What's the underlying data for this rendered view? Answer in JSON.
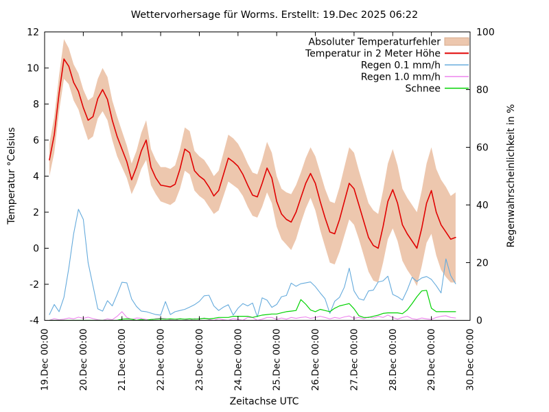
{
  "chart": {
    "title": "Wettervorhersage für Worms. Erstellt: 19.Dec 2025 06:22",
    "xlabel": "Zeitachse UTC",
    "ylabel_left": "Temperatur °Celsius",
    "ylabel_right": "Regenwahrscheinlichkeit in %"
  },
  "chart_data": {
    "type": "line",
    "title": "Wettervorhersage für Worms. Erstellt: 19.Dec 2025 06:22",
    "xlabel": "Zeitachse UTC",
    "ylabel_left": "Temperatur °Celsius",
    "ylabel_right": "Regenwahrscheinlichkeit in %",
    "x_unit": "days since 19.Dec 00:00 UTC",
    "x_range_days": [
      0,
      11
    ],
    "x_tick_labels": [
      "19.Dec 00:00",
      "20.Dec 00:00",
      "21.Dec 00:00",
      "22.Dec 00:00",
      "23.Dec 00:00",
      "24.Dec 00:00",
      "25.Dec 00:00",
      "26.Dec 00:00",
      "27.Dec 00:00",
      "28.Dec 00:00",
      "29.Dec 00:00",
      "30.Dec 00:00"
    ],
    "y_left": {
      "min": -4,
      "max": 12,
      "ticks": [
        -4,
        -2,
        0,
        2,
        4,
        6,
        8,
        10,
        12
      ]
    },
    "y_right": {
      "min": 0,
      "max": 100,
      "ticks": [
        0,
        20,
        40,
        60,
        80,
        100
      ]
    },
    "grid": false,
    "legend_position": "top-right-inside",
    "legend": [
      "Absoluter Temperaturfehler",
      "Temperatur in 2 Meter Höhe",
      "Regen 0.1 mm/h",
      "Regen 1.0 mm/h",
      "Schnee"
    ],
    "colors": {
      "band": "#edc7ae",
      "band_border": "#d8ab8c",
      "temperature": "#e00000",
      "rain01": "#64aadc",
      "rain10": "#ee82ee",
      "snow": "#00d200",
      "axis": "#000000"
    },
    "t_days": [
      0.125,
      0.25,
      0.375,
      0.5,
      0.625,
      0.75,
      0.875,
      1,
      1.125,
      1.25,
      1.375,
      1.5,
      1.625,
      1.75,
      1.875,
      2,
      2.125,
      2.25,
      2.375,
      2.5,
      2.625,
      2.75,
      2.875,
      3,
      3.125,
      3.25,
      3.375,
      3.5,
      3.625,
      3.75,
      3.875,
      4,
      4.125,
      4.25,
      4.375,
      4.5,
      4.625,
      4.75,
      4.875,
      5,
      5.125,
      5.25,
      5.375,
      5.5,
      5.625,
      5.75,
      5.875,
      6,
      6.125,
      6.25,
      6.375,
      6.5,
      6.625,
      6.75,
      6.875,
      7,
      7.125,
      7.25,
      7.375,
      7.5,
      7.625,
      7.75,
      7.875,
      8,
      8.125,
      8.25,
      8.375,
      8.5,
      8.625,
      8.75,
      8.875,
      9,
      9.125,
      9.25,
      9.375,
      9.5,
      9.625,
      9.75,
      9.875,
      10,
      10.125,
      10.25,
      10.375,
      10.5,
      10.625
    ],
    "series": [
      {
        "name": "Absoluter Temperaturfehler",
        "type": "band",
        "axis": "left",
        "hi": [
          5.8,
          7.3,
          9.6,
          11.6,
          11.1,
          10.2,
          9.7,
          8.8,
          8.2,
          8.4,
          9.4,
          10.0,
          9.5,
          8.2,
          7.3,
          6.5,
          5.7,
          4.7,
          5.4,
          6.4,
          7.1,
          5.5,
          4.9,
          4.5,
          4.5,
          4.4,
          4.6,
          5.5,
          6.7,
          6.5,
          5.4,
          5.1,
          4.9,
          4.5,
          4.0,
          4.3,
          5.3,
          6.3,
          6.1,
          5.8,
          5.3,
          4.7,
          4.2,
          4.1,
          4.9,
          5.9,
          5.3,
          4.0,
          3.3,
          3.1,
          3.0,
          3.5,
          4.2,
          5.0,
          5.6,
          5.1,
          4.2,
          3.3,
          2.6,
          2.5,
          3.4,
          4.5,
          5.6,
          5.3,
          4.3,
          3.4,
          2.5,
          2.1,
          1.9,
          3.2,
          4.7,
          5.5,
          4.6,
          3.3,
          2.8,
          2.4,
          2.0,
          3.2,
          4.7,
          5.6,
          4.4,
          3.8,
          3.4,
          2.9,
          3.1
        ],
        "lo": [
          4.0,
          5.3,
          7.6,
          9.4,
          9.1,
          8.2,
          7.7,
          6.8,
          6.0,
          6.2,
          7.2,
          7.6,
          7.1,
          6.0,
          5.1,
          4.5,
          3.9,
          3.0,
          3.6,
          4.4,
          4.9,
          3.5,
          3.0,
          2.6,
          2.5,
          2.4,
          2.6,
          3.3,
          4.3,
          4.1,
          3.2,
          2.9,
          2.7,
          2.3,
          1.9,
          2.1,
          2.9,
          3.7,
          3.5,
          3.3,
          2.9,
          2.3,
          1.8,
          1.7,
          2.3,
          3.1,
          2.5,
          1.2,
          0.5,
          0.2,
          -0.1,
          0.5,
          1.4,
          2.2,
          2.8,
          2.1,
          1.0,
          0.1,
          -0.8,
          -0.9,
          -0.2,
          0.7,
          1.6,
          1.3,
          0.5,
          -0.4,
          -1.3,
          -1.8,
          -1.9,
          -0.8,
          0.5,
          1.1,
          0.4,
          -0.7,
          -1.2,
          -1.6,
          -2.1,
          -1.0,
          0.3,
          0.8,
          -0.4,
          -1.2,
          -1.6,
          -1.9,
          -1.9
        ]
      },
      {
        "name": "Temperatur in 2 Meter Höhe",
        "type": "line",
        "axis": "left",
        "width": 1.6,
        "values": [
          4.9,
          6.3,
          8.6,
          10.5,
          10.1,
          9.2,
          8.7,
          7.8,
          7.1,
          7.3,
          8.3,
          8.8,
          8.25,
          7.1,
          6.2,
          5.5,
          4.8,
          3.8,
          4.5,
          5.4,
          6.0,
          4.5,
          3.9,
          3.5,
          3.45,
          3.4,
          3.55,
          4.4,
          5.5,
          5.3,
          4.3,
          4.0,
          3.8,
          3.4,
          2.9,
          3.2,
          4.1,
          5.0,
          4.8,
          4.55,
          4.1,
          3.5,
          2.95,
          2.85,
          3.6,
          4.45,
          3.9,
          2.6,
          1.9,
          1.6,
          1.45,
          2.0,
          2.8,
          3.6,
          4.15,
          3.6,
          2.6,
          1.7,
          0.9,
          0.8,
          1.6,
          2.6,
          3.6,
          3.3,
          2.4,
          1.5,
          0.6,
          0.15,
          0.0,
          1.2,
          2.6,
          3.25,
          2.5,
          1.3,
          0.8,
          0.4,
          0.0,
          1.1,
          2.5,
          3.2,
          2.0,
          1.3,
          0.9,
          0.5,
          0.6
        ]
      },
      {
        "name": "Regen 0.1 mm/h",
        "type": "line",
        "axis": "right",
        "width": 1.1,
        "values": [
          2,
          5.5,
          3,
          8,
          18,
          30,
          38.5,
          35,
          20,
          12,
          4,
          3.2,
          6.8,
          5,
          9,
          13.2,
          13,
          7.4,
          4.8,
          3.2,
          3,
          2.5,
          2,
          1.8,
          6.5,
          2,
          3,
          3.4,
          3.8,
          4.6,
          5.4,
          6.6,
          8.5,
          8.7,
          5,
          3.4,
          4.6,
          5.4,
          1.8,
          4.2,
          5.8,
          5,
          6,
          1.2,
          7.8,
          7,
          4.5,
          5.5,
          8.2,
          8.6,
          12.9,
          11.8,
          12.7,
          13,
          13.3,
          11.7,
          9.5,
          7.5,
          2.4,
          6.6,
          8,
          11.5,
          18.1,
          10.2,
          7.5,
          7,
          10.2,
          10.5,
          13.3,
          13.7,
          15.3,
          9,
          8.2,
          7,
          10.5,
          14.9,
          13.5,
          14.7,
          15.2,
          14.2,
          12,
          9.5,
          21.3,
          15.5,
          12.7
        ]
      },
      {
        "name": "Regen 1.0 mm/h",
        "type": "line",
        "axis": "right",
        "width": 1.1,
        "values": [
          0,
          0.6,
          0.2,
          0.4,
          0.8,
          0.5,
          1.1,
          0.7,
          1.1,
          0.6,
          0.2,
          0,
          0.5,
          0.2,
          1.4,
          3.0,
          1.0,
          0.3,
          0.8,
          0.7,
          0.3,
          0,
          0.6,
          0.7,
          0.6,
          0.2,
          0,
          0.6,
          0.3,
          0,
          0.6,
          0.3,
          0.8,
          0.3,
          0,
          0.6,
          0.2,
          0,
          0.6,
          0.3,
          0,
          1.0,
          1.0,
          0,
          0.4,
          1.0,
          1.0,
          0.3,
          0.8,
          0.4,
          1.0,
          0.7,
          1.0,
          1.2,
          0.7,
          1.0,
          1.4,
          1.0,
          0.5,
          1.0,
          0.7,
          1.2,
          1.5,
          0.7,
          1.0,
          0.5,
          1.2,
          0.8,
          1.4,
          1.0,
          1.8,
          1.0,
          0.4,
          1.0,
          1.4,
          0.6,
          0.3,
          0.8,
          0.5,
          0.3,
          1.0,
          1.4,
          1.6,
          1.0,
          0.8
        ]
      },
      {
        "name": "Schnee",
        "type": "line",
        "axis": "right",
        "width": 1.2,
        "values": [
          0,
          0,
          0,
          0,
          0,
          0,
          0,
          0,
          0,
          0,
          0,
          0,
          0,
          0,
          0,
          0.4,
          0.5,
          0.4,
          0,
          0.3,
          0,
          0.3,
          0.4,
          0.5,
          0.4,
          0.5,
          0.4,
          0.5,
          0.4,
          0.5,
          0.4,
          0.5,
          0.7,
          0.5,
          0.7,
          1.0,
          1.0,
          1.0,
          1.4,
          1.4,
          1.4,
          1.4,
          1.0,
          1.4,
          1.8,
          2.0,
          2.2,
          2.2,
          2.6,
          3.0,
          3.2,
          3.4,
          7.2,
          5.6,
          3.6,
          3.0,
          3.8,
          3.4,
          3.0,
          4.2,
          5.0,
          5.4,
          5.8,
          4.0,
          1.6,
          1.0,
          1.0,
          1.4,
          1.8,
          2.4,
          2.6,
          2.6,
          2.6,
          2.3,
          3.6,
          5.8,
          8.2,
          10.2,
          10.4,
          4.2,
          3.0,
          3.0,
          3.0,
          3.0,
          3.0
        ]
      }
    ]
  }
}
